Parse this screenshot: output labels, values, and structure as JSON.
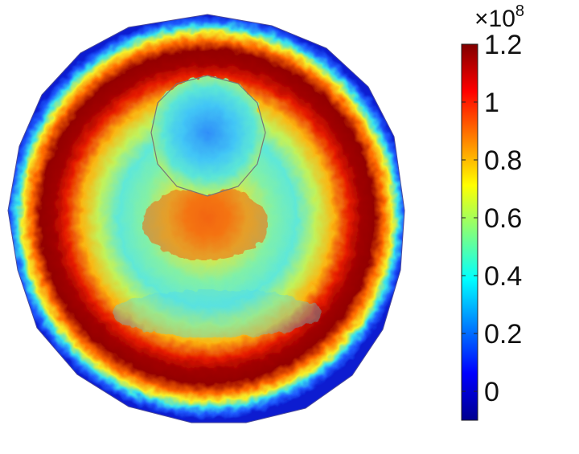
{
  "chart_data": {
    "type": "heatmap",
    "title": "",
    "xlabel": "",
    "ylabel": "",
    "colormap": "jet",
    "colorbar": {
      "multiplier_base": "×10",
      "multiplier_exponent": "8",
      "range": [
        -0.1,
        1.2
      ],
      "ticks": [
        0,
        0.2,
        0.4,
        0.6,
        0.8,
        1,
        1.2
      ],
      "tick_labels": [
        "0",
        "0.2",
        "0.4",
        "0.6",
        "0.8",
        "1",
        "1.2"
      ]
    },
    "domain": {
      "shape": "circular polygon",
      "inner_region": "circular sub-domain outlined near the top"
    },
    "rings": [
      {
        "name": "outer edge",
        "value": -0.05
      },
      {
        "name": "edge band",
        "value": 0.25
      },
      {
        "name": "peak ring",
        "value": 1.15
      },
      {
        "name": "inner transition",
        "value": 0.85
      },
      {
        "name": "middle zone",
        "value": 0.45
      },
      {
        "name": "center spot",
        "value": 0.85
      }
    ],
    "inner_region_values": {
      "min": 0.1,
      "max": 0.5
    }
  },
  "colors": {
    "jet": [
      "#00008f",
      "#0000ff",
      "#00ffff",
      "#ffff00",
      "#ff0000",
      "#800000"
    ],
    "outline": "#777777",
    "text": "#111111"
  }
}
